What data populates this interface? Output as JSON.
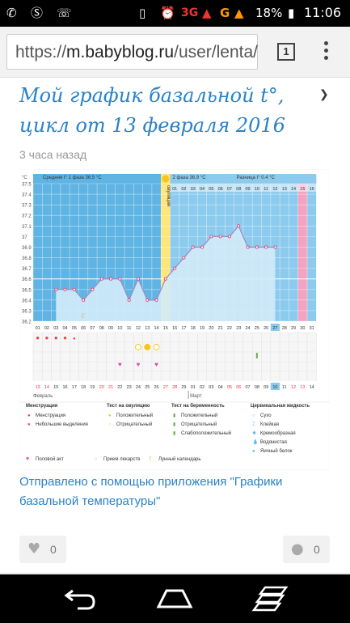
{
  "status_bar": {
    "network": "3G",
    "battery": "18%",
    "time": "11:06"
  },
  "browser": {
    "url_scheme": "https://",
    "url_host": "m.babyblog.ru",
    "url_path": "/user/lenta/",
    "tab_count": "1"
  },
  "post": {
    "title_line1": "Мой график базальной t°,",
    "title_line2": "цикл от 13 февраля 2016",
    "time": "3 часа назад",
    "link_text": "Отправлено с помощью приложения \"Графики базальной температуры\"",
    "likes": "0",
    "comments": "0"
  },
  "chart_data": {
    "type": "line",
    "unit_label": "°C",
    "phase1_label": "Средняя t° 1 фаза 36.5 °C",
    "phase2_label": "2 фаза 36.9 °C",
    "diff_label": "Разница t° 0.4 °C",
    "ovulation_label": "овуляция",
    "ylim": [
      36.2,
      37.5
    ],
    "yticks": [
      "37.5",
      "37.4",
      "37.3",
      "37.2",
      "37.1",
      "37",
      "36.9",
      "36.8",
      "36.7",
      "36.6",
      "36.5",
      "36.4",
      "36.3",
      "36.2"
    ],
    "cycle_days": [
      "01",
      "02",
      "03",
      "04",
      "05",
      "06",
      "07",
      "08",
      "09",
      "10",
      "11",
      "12",
      "13",
      "14",
      "15",
      "16",
      "17",
      "18",
      "19",
      "20",
      "21",
      "22",
      "23",
      "24",
      "25",
      "26",
      "27",
      "28",
      "29",
      "30",
      "31"
    ],
    "phase2_days": [
      "01",
      "02",
      "03",
      "04",
      "05",
      "06",
      "07",
      "08",
      "09",
      "10",
      "11",
      "12",
      "13",
      "14",
      "15",
      "16"
    ],
    "temperatures": [
      null,
      null,
      36.5,
      36.5,
      36.5,
      36.4,
      36.5,
      36.6,
      36.6,
      36.6,
      36.4,
      36.6,
      36.4,
      36.4,
      36.6,
      36.7,
      36.8,
      36.9,
      36.9,
      37.0,
      37.0,
      37.0,
      37.1,
      36.9,
      36.9,
      36.9,
      36.9,
      null,
      null,
      null,
      null
    ],
    "coverline": 36.6,
    "ovulation_day": 15,
    "current_day": "27",
    "dates": [
      "13",
      "14",
      "15",
      "16",
      "17",
      "18",
      "19",
      "20",
      "21",
      "22",
      "23",
      "24",
      "25",
      "26",
      "27",
      "28",
      "29",
      "01",
      "02",
      "03",
      "04",
      "05",
      "06",
      "07",
      "08",
      "09",
      "10",
      "11",
      "12",
      "13",
      "14"
    ],
    "month_start": "Февраль",
    "month_mid": "Март",
    "current_date": "10",
    "legend": {
      "col1_title": "Менструация",
      "col1_items": [
        "Менструация",
        "Небольшие выделения"
      ],
      "col2_title": "Тест на овуляцию",
      "col2_items": [
        "Положительный",
        "Отрицательный"
      ],
      "col3_title": "Тест на беременность",
      "col3_items": [
        "Положительный",
        "Отрицательный",
        "Слабоположительный"
      ],
      "col4_title": "Цервикальная жидкость",
      "col4_items": [
        "Сухо",
        "Клейкая",
        "Кремообразная",
        "Водянистая",
        "Яичный белок"
      ],
      "extra_items": [
        "Половой акт",
        "Прием лекарств",
        "Лунный календарь"
      ]
    },
    "colors": {
      "phase1_bg": "#5fb4e3",
      "phase2_bg": "#8ccbed",
      "ovulation": "#ffe57a",
      "area_fill": "#d3ebf8",
      "line": "#9a8fc8",
      "point": "#e0457b",
      "menstruation": "#e5454f",
      "heart": "#e645a0",
      "current_day": "#8ccbed",
      "pink_band": "#f5a3c0"
    }
  }
}
